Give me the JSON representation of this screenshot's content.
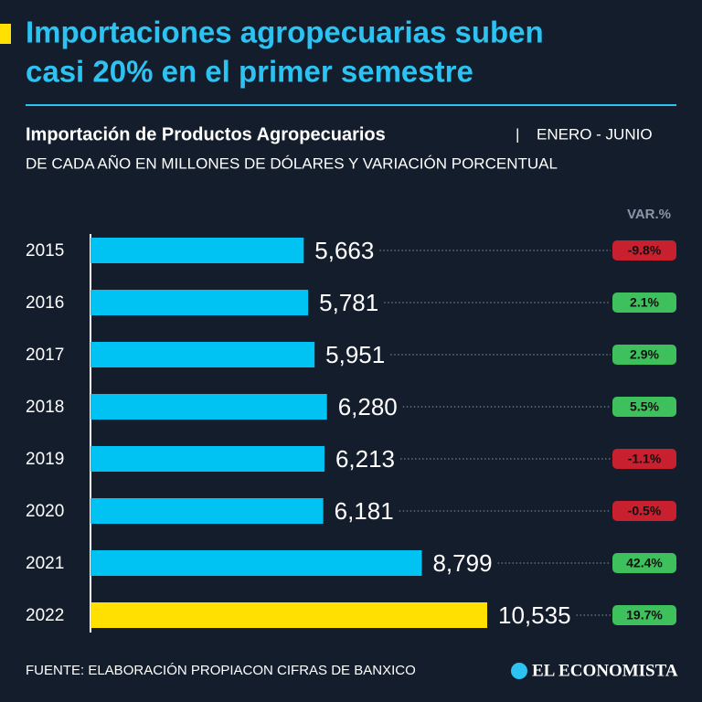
{
  "chart_data": {
    "type": "bar",
    "title_line1": "Importaciones agropecuarias suben",
    "title_line2": "casi 20% en el primer semestre",
    "subtitle": "Importación de Productos Agropecuarios",
    "separator": "|",
    "note_line1": "ENERO - JUNIO",
    "note_line2": "DE CADA AÑO EN MILLONES DE DÓLARES Y VARIACIÓN PORCENTUAL",
    "variation_header": "VAR.%",
    "categories": [
      "2015",
      "2016",
      "2017",
      "2018",
      "2019",
      "2020",
      "2021",
      "2022"
    ],
    "values": [
      5663,
      5781,
      5951,
      6280,
      6213,
      6181,
      8799,
      10535
    ],
    "value_labels": [
      "5,663",
      "5,781",
      "5,951",
      "6,280",
      "6,213",
      "6,181",
      "8,799",
      "10,535"
    ],
    "colors": [
      "#00c3f4",
      "#00c3f4",
      "#00c3f4",
      "#00c3f4",
      "#00c3f4",
      "#00c3f4",
      "#00c3f4",
      "#ffe000"
    ],
    "variation": [
      -9.8,
      2.1,
      2.9,
      5.5,
      -1.1,
      -0.5,
      42.4,
      19.7
    ],
    "variation_labels": [
      "-9.8%",
      "2.1%",
      "2.9%",
      "5.5%",
      "-1.1%",
      "-0.5%",
      "42.4%",
      "19.7%"
    ],
    "positive_color": "#3ec15c",
    "negative_color": "#c8202f",
    "source": "FUENTE: ELABORACIÓN PROPIACON CIFRAS DE BANXICO",
    "brand": "EL ECONOMISTA"
  }
}
